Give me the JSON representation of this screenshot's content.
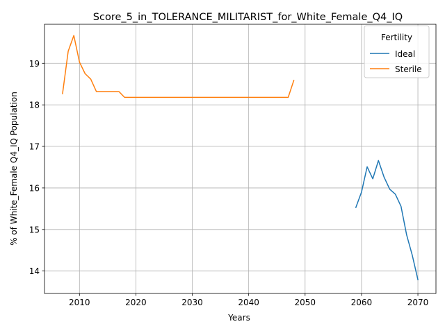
{
  "chart_data": {
    "type": "line",
    "title": "Score_5_in_TOLERANCE_MILITARIST_for_White_Female_Q4_IQ",
    "xlabel": "Years",
    "ylabel": "% of White_Female Q4_IQ Population",
    "xlim": [
      2003.8,
      2073.2
    ],
    "ylim": [
      13.46,
      19.94
    ],
    "xticks": [
      2010,
      2020,
      2030,
      2040,
      2050,
      2060,
      2070
    ],
    "yticks": [
      14,
      15,
      16,
      17,
      18,
      19
    ],
    "grid": true,
    "legend": {
      "title": "Fertility",
      "placement": "top-right"
    },
    "series": [
      {
        "name": "Ideal",
        "color": "#1f77b4",
        "x": [
          2059,
          2060,
          2061,
          2062,
          2063,
          2064,
          2065,
          2066,
          2067,
          2068,
          2069,
          2070
        ],
        "y": [
          15.53,
          15.9,
          16.51,
          16.22,
          16.66,
          16.26,
          15.97,
          15.85,
          15.56,
          14.87,
          14.38,
          13.79
        ]
      },
      {
        "name": "Sterile",
        "color": "#ff7f0e",
        "x": [
          2007,
          2008,
          2009,
          2010,
          2011,
          2012,
          2013,
          2014,
          2015,
          2016,
          2017,
          2018,
          2019,
          2020,
          2025,
          2030,
          2035,
          2040,
          2045,
          2046,
          2047,
          2048
        ],
        "y": [
          18.27,
          19.29,
          19.67,
          19.03,
          18.75,
          18.62,
          18.32,
          18.32,
          18.32,
          18.32,
          18.32,
          18.18,
          18.18,
          18.18,
          18.18,
          18.18,
          18.18,
          18.18,
          18.18,
          18.18,
          18.18,
          18.59
        ]
      }
    ]
  }
}
